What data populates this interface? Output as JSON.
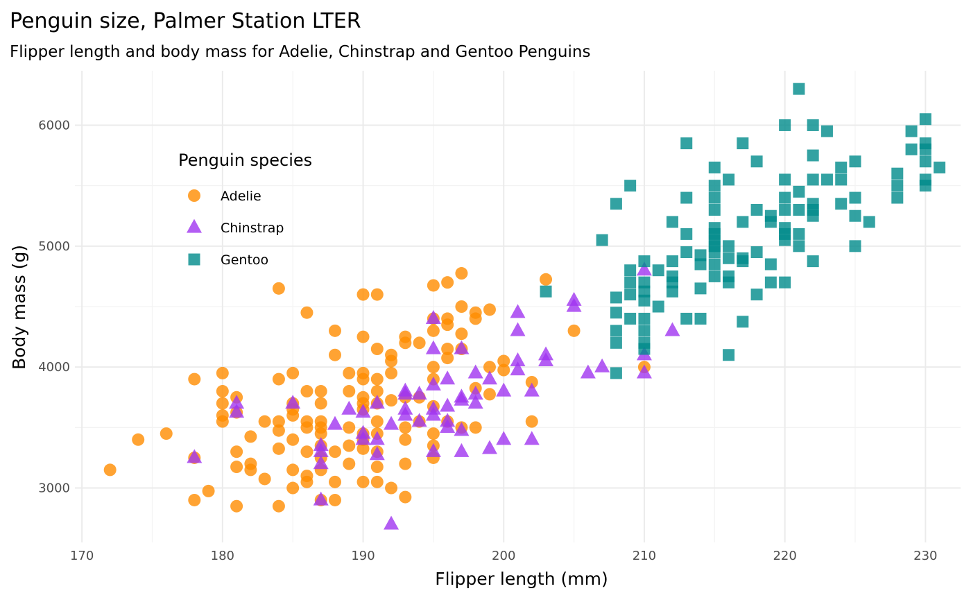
{
  "chart_data": {
    "type": "scatter",
    "title": "Penguin size, Palmer Station LTER",
    "subtitle": "Flipper length and body mass for Adelie, Chinstrap and Gentoo Penguins",
    "xlabel": "Flipper length (mm)",
    "ylabel": "Body mass (g)",
    "xlim": [
      169.5,
      232.5
    ],
    "ylim": [
      2550,
      6450
    ],
    "xticks": [
      170,
      180,
      190,
      200,
      210,
      220,
      230
    ],
    "yticks": [
      3000,
      4000,
      5000,
      6000
    ],
    "grid": true,
    "legend": {
      "title": "Penguin species",
      "placement": "top-left"
    },
    "series": [
      {
        "name": "Adelie",
        "marker": "circle",
        "color": "#FF8C00",
        "points": [
          [
            172,
            3150
          ],
          [
            174,
            3400
          ],
          [
            176,
            3450
          ],
          [
            178,
            3900
          ],
          [
            178,
            3250
          ],
          [
            178,
            2900
          ],
          [
            179,
            2975
          ],
          [
            180,
            3950
          ],
          [
            180,
            3800
          ],
          [
            180,
            3700
          ],
          [
            180,
            3600
          ],
          [
            180,
            3550
          ],
          [
            181,
            3750
          ],
          [
            181,
            3625
          ],
          [
            181,
            3300
          ],
          [
            181,
            3175
          ],
          [
            181,
            2850
          ],
          [
            182,
            3425
          ],
          [
            182,
            3200
          ],
          [
            182,
            3150
          ],
          [
            183,
            3550
          ],
          [
            183,
            3075
          ],
          [
            184,
            4650
          ],
          [
            184,
            3900
          ],
          [
            184,
            3550
          ],
          [
            184,
            3475
          ],
          [
            184,
            3325
          ],
          [
            184,
            2850
          ],
          [
            185,
            3950
          ],
          [
            185,
            3700
          ],
          [
            185,
            3650
          ],
          [
            185,
            3600
          ],
          [
            185,
            3400
          ],
          [
            185,
            3150
          ],
          [
            185,
            3000
          ],
          [
            186,
            4450
          ],
          [
            186,
            3800
          ],
          [
            186,
            3550
          ],
          [
            186,
            3500
          ],
          [
            186,
            3300
          ],
          [
            186,
            3100
          ],
          [
            186,
            3050
          ],
          [
            187,
            3800
          ],
          [
            187,
            3700
          ],
          [
            187,
            3550
          ],
          [
            187,
            3500
          ],
          [
            187,
            3450
          ],
          [
            187,
            3350
          ],
          [
            187,
            3250
          ],
          [
            187,
            3150
          ],
          [
            187,
            2900
          ],
          [
            188,
            4300
          ],
          [
            188,
            4100
          ],
          [
            188,
            3300
          ],
          [
            188,
            3050
          ],
          [
            188,
            2900
          ],
          [
            189,
            3950
          ],
          [
            189,
            3800
          ],
          [
            189,
            3500
          ],
          [
            189,
            3350
          ],
          [
            189,
            3200
          ],
          [
            190,
            4600
          ],
          [
            190,
            4250
          ],
          [
            190,
            3950
          ],
          [
            190,
            3900
          ],
          [
            190,
            3750
          ],
          [
            190,
            3700
          ],
          [
            190,
            3650
          ],
          [
            190,
            3450
          ],
          [
            190,
            3400
          ],
          [
            190,
            3325
          ],
          [
            190,
            3050
          ],
          [
            191,
            4600
          ],
          [
            191,
            4150
          ],
          [
            191,
            3900
          ],
          [
            191,
            3800
          ],
          [
            191,
            3700
          ],
          [
            191,
            3550
          ],
          [
            191,
            3450
          ],
          [
            191,
            3300
          ],
          [
            191,
            3175
          ],
          [
            191,
            3050
          ],
          [
            192,
            4100
          ],
          [
            192,
            4050
          ],
          [
            192,
            3950
          ],
          [
            192,
            3725
          ],
          [
            192,
            3000
          ],
          [
            193,
            4250
          ],
          [
            193,
            4200
          ],
          [
            193,
            3750
          ],
          [
            193,
            3500
          ],
          [
            193,
            3400
          ],
          [
            193,
            3200
          ],
          [
            193,
            2925
          ],
          [
            194,
            4200
          ],
          [
            194,
            3750
          ],
          [
            194,
            3550
          ],
          [
            195,
            4675
          ],
          [
            195,
            4400
          ],
          [
            195,
            4300
          ],
          [
            195,
            4000
          ],
          [
            195,
            3900
          ],
          [
            195,
            3675
          ],
          [
            195,
            3450
          ],
          [
            195,
            3350
          ],
          [
            195,
            3250
          ],
          [
            196,
            4700
          ],
          [
            196,
            4400
          ],
          [
            196,
            4350
          ],
          [
            196,
            4150
          ],
          [
            196,
            4075
          ],
          [
            196,
            3550
          ],
          [
            197,
            4775
          ],
          [
            197,
            4500
          ],
          [
            197,
            4275
          ],
          [
            197,
            4150
          ],
          [
            197,
            3500
          ],
          [
            198,
            4450
          ],
          [
            198,
            4400
          ],
          [
            198,
            3825
          ],
          [
            198,
            3500
          ],
          [
            199,
            4475
          ],
          [
            199,
            4000
          ],
          [
            199,
            3775
          ],
          [
            200,
            4050
          ],
          [
            200,
            3975
          ],
          [
            202,
            3875
          ],
          [
            202,
            3550
          ],
          [
            203,
            4725
          ],
          [
            205,
            4300
          ],
          [
            210,
            4000
          ]
        ]
      },
      {
        "name": "Chinstrap",
        "marker": "triangle",
        "color": "#A034F0",
        "points": [
          [
            178,
            3250
          ],
          [
            181,
            3700
          ],
          [
            181,
            3625
          ],
          [
            185,
            3700
          ],
          [
            187,
            3350
          ],
          [
            187,
            3300
          ],
          [
            187,
            3200
          ],
          [
            187,
            2900
          ],
          [
            188,
            3525
          ],
          [
            189,
            3650
          ],
          [
            190,
            3625
          ],
          [
            190,
            3450
          ],
          [
            190,
            3400
          ],
          [
            191,
            3700
          ],
          [
            191,
            3400
          ],
          [
            191,
            3275
          ],
          [
            192,
            3525
          ],
          [
            192,
            2700
          ],
          [
            193,
            3800
          ],
          [
            193,
            3775
          ],
          [
            193,
            3650
          ],
          [
            193,
            3600
          ],
          [
            194,
            3775
          ],
          [
            194,
            3550
          ],
          [
            195,
            4400
          ],
          [
            195,
            4150
          ],
          [
            195,
            3850
          ],
          [
            195,
            3650
          ],
          [
            195,
            3600
          ],
          [
            195,
            3300
          ],
          [
            196,
            3900
          ],
          [
            196,
            3675
          ],
          [
            196,
            3550
          ],
          [
            196,
            3500
          ],
          [
            197,
            4150
          ],
          [
            197,
            3750
          ],
          [
            197,
            3725
          ],
          [
            197,
            3475
          ],
          [
            197,
            3300
          ],
          [
            198,
            3950
          ],
          [
            198,
            3775
          ],
          [
            198,
            3700
          ],
          [
            199,
            3900
          ],
          [
            199,
            3325
          ],
          [
            200,
            3800
          ],
          [
            200,
            3400
          ],
          [
            201,
            4450
          ],
          [
            201,
            4300
          ],
          [
            201,
            4050
          ],
          [
            201,
            3975
          ],
          [
            202,
            3800
          ],
          [
            202,
            3400
          ],
          [
            203,
            4100
          ],
          [
            203,
            4050
          ],
          [
            205,
            4550
          ],
          [
            205,
            4500
          ],
          [
            206,
            3950
          ],
          [
            207,
            4000
          ],
          [
            210,
            4800
          ],
          [
            210,
            4100
          ],
          [
            210,
            3950
          ],
          [
            212,
            4300
          ]
        ]
      },
      {
        "name": "Gentoo",
        "marker": "square",
        "color": "#008B8B",
        "points": [
          [
            203,
            4625
          ],
          [
            207,
            5050
          ],
          [
            208,
            5350
          ],
          [
            208,
            4575
          ],
          [
            208,
            4450
          ],
          [
            208,
            4300
          ],
          [
            208,
            4200
          ],
          [
            208,
            3950
          ],
          [
            209,
            5500
          ],
          [
            209,
            4800
          ],
          [
            209,
            4700
          ],
          [
            209,
            4600
          ],
          [
            209,
            4400
          ],
          [
            210,
            4875
          ],
          [
            210,
            4700
          ],
          [
            210,
            4625
          ],
          [
            210,
            4550
          ],
          [
            210,
            4400
          ],
          [
            210,
            4300
          ],
          [
            210,
            4200
          ],
          [
            210,
            4150
          ],
          [
            211,
            4800
          ],
          [
            211,
            4500
          ],
          [
            212,
            5200
          ],
          [
            212,
            4875
          ],
          [
            212,
            4750
          ],
          [
            212,
            4700
          ],
          [
            212,
            4625
          ],
          [
            213,
            5850
          ],
          [
            213,
            5400
          ],
          [
            213,
            5100
          ],
          [
            213,
            4950
          ],
          [
            213,
            4400
          ],
          [
            214,
            4925
          ],
          [
            214,
            4850
          ],
          [
            214,
            4650
          ],
          [
            214,
            4400
          ],
          [
            215,
            5650
          ],
          [
            215,
            5500
          ],
          [
            215,
            5400
          ],
          [
            215,
            5300
          ],
          [
            215,
            5150
          ],
          [
            215,
            5100
          ],
          [
            215,
            5050
          ],
          [
            215,
            5000
          ],
          [
            215,
            4950
          ],
          [
            215,
            4850
          ],
          [
            215,
            4750
          ],
          [
            216,
            5550
          ],
          [
            216,
            5000
          ],
          [
            216,
            4900
          ],
          [
            216,
            4750
          ],
          [
            216,
            4700
          ],
          [
            216,
            4100
          ],
          [
            217,
            5850
          ],
          [
            217,
            5200
          ],
          [
            217,
            4900
          ],
          [
            217,
            4875
          ],
          [
            217,
            4375
          ],
          [
            218,
            5700
          ],
          [
            218,
            5300
          ],
          [
            218,
            4950
          ],
          [
            218,
            4600
          ],
          [
            219,
            5250
          ],
          [
            219,
            5200
          ],
          [
            219,
            4850
          ],
          [
            219,
            4700
          ],
          [
            220,
            6000
          ],
          [
            220,
            5550
          ],
          [
            220,
            5400
          ],
          [
            220,
            5300
          ],
          [
            220,
            5150
          ],
          [
            220,
            5100
          ],
          [
            220,
            5050
          ],
          [
            220,
            4700
          ],
          [
            221,
            6300
          ],
          [
            221,
            5450
          ],
          [
            221,
            5300
          ],
          [
            221,
            5100
          ],
          [
            221,
            5000
          ],
          [
            222,
            6000
          ],
          [
            222,
            5750
          ],
          [
            222,
            5550
          ],
          [
            222,
            5350
          ],
          [
            222,
            5300
          ],
          [
            222,
            5250
          ],
          [
            222,
            4875
          ],
          [
            223,
            5950
          ],
          [
            223,
            5550
          ],
          [
            224,
            5650
          ],
          [
            224,
            5550
          ],
          [
            224,
            5350
          ],
          [
            225,
            5700
          ],
          [
            225,
            5400
          ],
          [
            225,
            5250
          ],
          [
            225,
            5000
          ],
          [
            226,
            5200
          ],
          [
            228,
            5600
          ],
          [
            228,
            5500
          ],
          [
            228,
            5400
          ],
          [
            229,
            5950
          ],
          [
            229,
            5800
          ],
          [
            230,
            6050
          ],
          [
            230,
            5850
          ],
          [
            230,
            5800
          ],
          [
            230,
            5700
          ],
          [
            230,
            5550
          ],
          [
            230,
            5500
          ],
          [
            231,
            5650
          ]
        ]
      }
    ]
  }
}
